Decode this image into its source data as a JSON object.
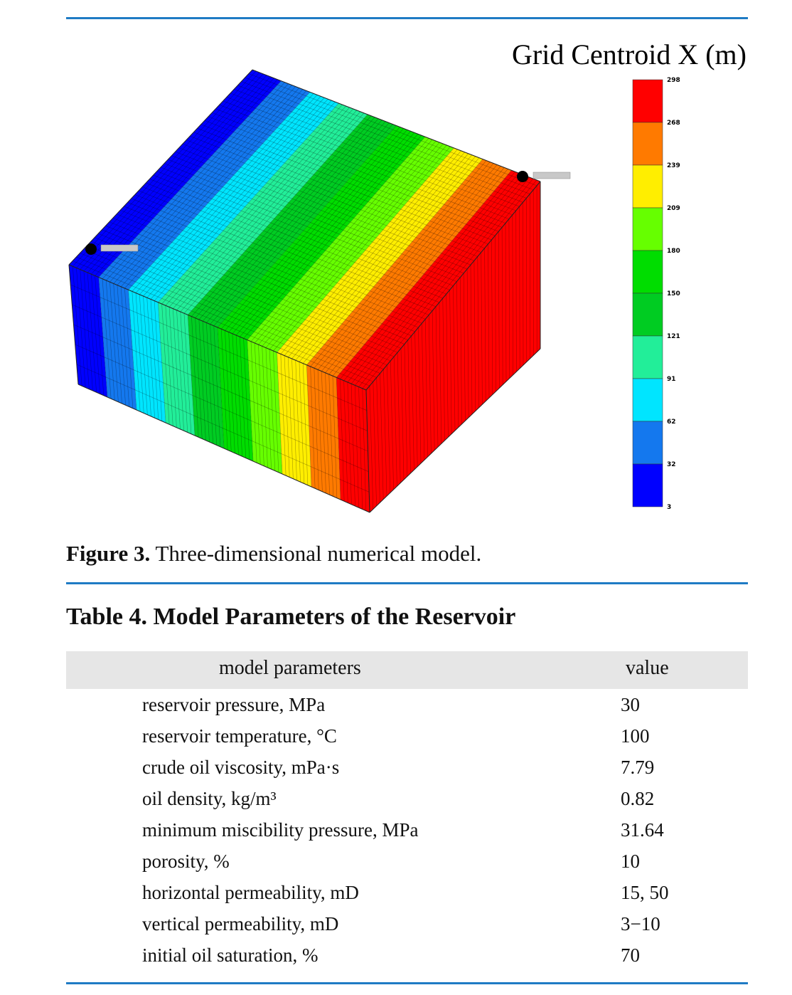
{
  "figure": {
    "colorbar": {
      "title": "Grid Centroid X (m)",
      "labels": [
        "298",
        "268",
        "239",
        "209",
        "180",
        "150",
        "121",
        "91",
        "62",
        "32",
        "3"
      ],
      "colors": [
        "#ff0000",
        "#ff7a00",
        "#ffee00",
        "#66ff00",
        "#00dd00",
        "#00cc22",
        "#22ee99",
        "#00e5ff",
        "#1478ee",
        "#0000ff"
      ]
    },
    "caption": {
      "label": "Figure 3.",
      "text": "Three-dimensional numerical model."
    }
  },
  "table": {
    "title": {
      "label": "Table 4.",
      "text": "Model Parameters of the Reservoir"
    },
    "header": [
      "model parameters",
      "value"
    ],
    "rows": [
      [
        "reservoir pressure, MPa",
        "30"
      ],
      [
        "reservoir temperature, °C",
        "100"
      ],
      [
        "crude oil viscosity, mPa·s",
        "7.79"
      ],
      [
        "oil density, kg/m³",
        "0.82"
      ],
      [
        "minimum miscibility pressure, MPa",
        "31.64"
      ],
      [
        "porosity, %",
        "10"
      ],
      [
        "horizontal permeability, mD",
        "15, 50"
      ],
      [
        "vertical permeability, mD",
        "3−10"
      ],
      [
        "initial oil saturation, %",
        "70"
      ]
    ]
  }
}
